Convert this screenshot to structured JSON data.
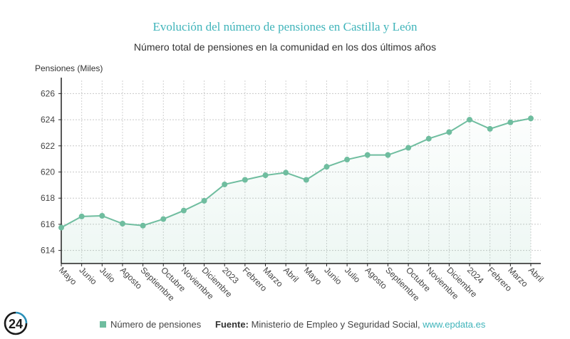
{
  "header": {
    "title": "Evolución del número de pensiones en Castilla y León",
    "subtitle": "Número total de pensiones en la comunidad en los dos últimos años"
  },
  "chart_data": {
    "type": "area",
    "title": "Evolución del número de pensiones en Castilla y León",
    "subtitle": "Número total de pensiones en la comunidad en los dos últimos años",
    "ylabel": "Pensiones (Miles)",
    "xlabel": "",
    "ylim": [
      613,
      627
    ],
    "yticks": [
      614,
      616,
      618,
      620,
      622,
      624,
      626
    ],
    "grid": true,
    "legend_position": "bottom-left",
    "categories": [
      "Mayo",
      "Junio",
      "Julio",
      "Agosto",
      "Septiembre",
      "Octubre",
      "Noviembre",
      "Diciembre",
      "2023",
      "Febrero",
      "Marzo",
      "Abril",
      "Mayo",
      "Junio",
      "Julio",
      "Agosto",
      "Septiembre",
      "Octubre",
      "Noviembre",
      "Diciembre",
      "2024",
      "Febrero",
      "Marzo",
      "Abril"
    ],
    "series": [
      {
        "name": "Número de pensiones",
        "color": "#6fbd9f",
        "values": [
          615.75,
          616.6,
          616.65,
          616.05,
          615.9,
          616.4,
          617.05,
          617.8,
          619.05,
          619.4,
          619.75,
          619.95,
          619.4,
          620.4,
          620.95,
          621.3,
          621.3,
          621.85,
          622.55,
          623.05,
          624.0,
          623.3,
          623.8,
          624.1
        ]
      }
    ]
  },
  "footer": {
    "legend_label": "Número de pensiones",
    "source_label": "Fuente:",
    "source_text": " Ministerio de Empleo y Seguridad Social, ",
    "source_link": "www.epdata.es"
  },
  "logo": {
    "text": "24"
  },
  "colors": {
    "accent": "#3fb4ba",
    "series": "#6fbd9f",
    "grid": "#cccccc"
  }
}
